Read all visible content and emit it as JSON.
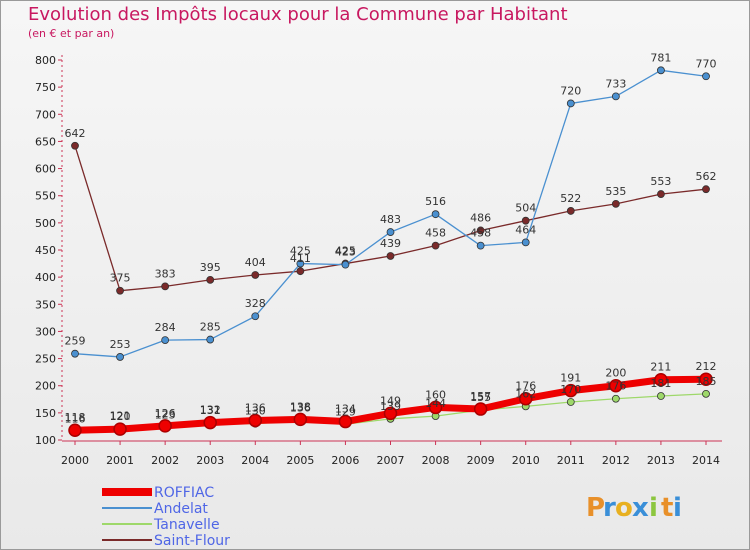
{
  "title": "Evolution des Impôts locaux pour la Commune par Habitant",
  "subtitle": "(en € et par an)",
  "logo": {
    "letters": [
      "P",
      "r",
      "o",
      "x",
      "i",
      "t",
      "i"
    ],
    "colors": [
      "#e8902a",
      "#3a8fd8",
      "#e8b020",
      "#3a8fd8",
      "#8cc63f",
      "#e8902a",
      "#3a8fd8"
    ]
  },
  "chart_data": {
    "type": "line",
    "title": "Evolution des Impôts locaux pour la Commune par Habitant",
    "ylabel": "(en € et par an)",
    "x": [
      "2000",
      "2001",
      "2002",
      "2003",
      "2004",
      "2005",
      "2006",
      "2007",
      "2008",
      "2009",
      "2010",
      "2011",
      "2012",
      "2013",
      "2014"
    ],
    "ylim": [
      100,
      800
    ],
    "yticks": [
      "100",
      "150",
      "200",
      "250",
      "300",
      "350",
      "400",
      "450",
      "500",
      "550",
      "600",
      "650",
      "700",
      "750",
      "800"
    ],
    "grid": false,
    "legend": "bottom-left",
    "series": [
      {
        "name": "ROFFIAC",
        "color": "#ee0000",
        "values": [
          118,
          120,
          126,
          132,
          136,
          138,
          134,
          149,
          160,
          157,
          176,
          191,
          200,
          211,
          212
        ],
        "labels": [
          "118",
          "120",
          "126",
          "132",
          "136",
          "138",
          "134",
          "149",
          "160",
          "157",
          "176",
          "191",
          "200",
          "211",
          "212"
        ]
      },
      {
        "name": "Andelat",
        "color": "#4a90d0",
        "values": [
          259,
          253,
          284,
          285,
          328,
          425,
          423,
          483,
          516,
          458,
          464,
          720,
          733,
          781,
          770
        ],
        "labels": [
          "259",
          "253",
          "284",
          "285",
          "328",
          "425",
          "423",
          "483",
          "516",
          "458",
          "464",
          "720",
          "733",
          "781",
          "770"
        ]
      },
      {
        "name": "Tanavelle",
        "color": "#9ed86a",
        "values": [
          116,
          121,
          123,
          131,
          130,
          136,
          129,
          139,
          144,
          155,
          162,
          170,
          176,
          181,
          185
        ],
        "labels": [
          "116",
          "121",
          "123",
          "131",
          "130",
          "136",
          "129",
          "139",
          "144",
          "155",
          "162",
          "170",
          "176",
          "181",
          "185"
        ]
      },
      {
        "name": "Saint-Flour",
        "color": "#7a2a2a",
        "values": [
          642,
          375,
          383,
          395,
          404,
          411,
          425,
          439,
          458,
          486,
          504,
          522,
          535,
          553,
          562
        ],
        "labels": [
          "642",
          "375",
          "383",
          "395",
          "404",
          "411",
          "425",
          "439",
          "458",
          "486",
          "504",
          "522",
          "535",
          "553",
          "562"
        ]
      }
    ]
  }
}
